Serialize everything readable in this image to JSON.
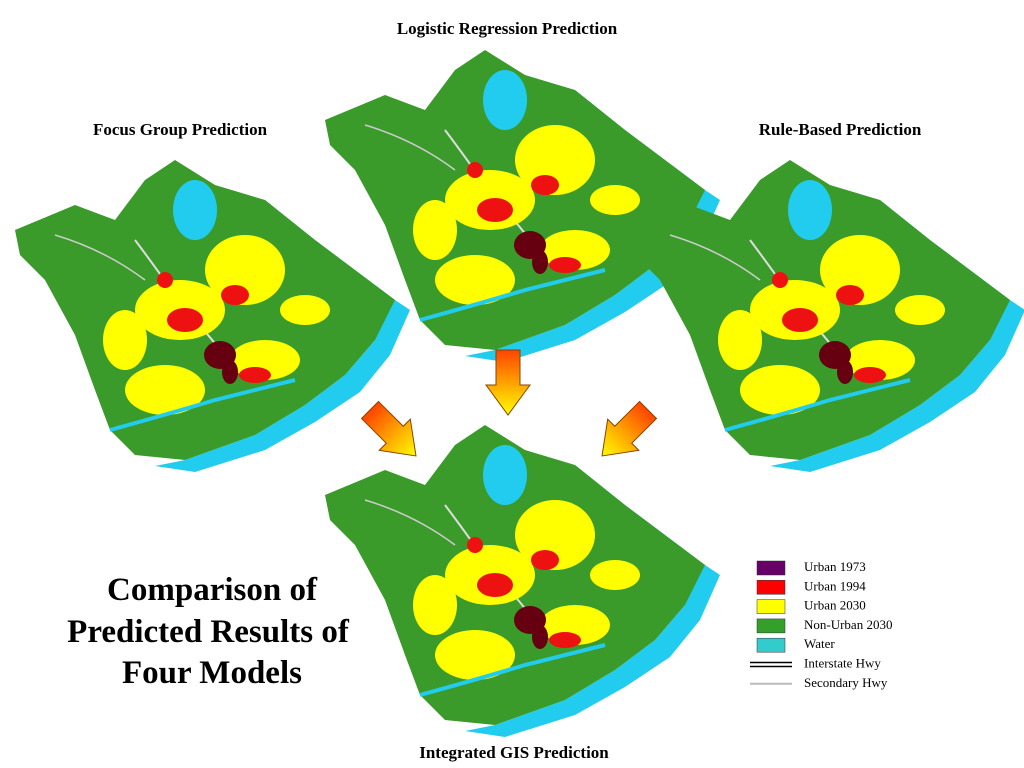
{
  "maps": [
    {
      "label": "Logistic Regression Prediction"
    },
    {
      "label": "Focus Group Prediction"
    },
    {
      "label": "Rule-Based Prediction"
    },
    {
      "label": "Integrated GIS Prediction"
    }
  ],
  "title": {
    "lines": [
      "Comparison of",
      "Predicted Results of",
      "Four Models"
    ]
  },
  "legend": {
    "areas": [
      {
        "label": "Urban 1973",
        "color": "#660066"
      },
      {
        "label": "Urban 1994",
        "color": "#ff0000"
      },
      {
        "label": "Urban 2030",
        "color": "#ffff00"
      },
      {
        "label": "Non-Urban 2030",
        "color": "#33a02c"
      },
      {
        "label": "Water",
        "color": "#33cccc"
      }
    ],
    "lines": [
      {
        "label": "Interstate Hwy",
        "color": "#000000"
      },
      {
        "label": "Secondary Hwy",
        "color": "#bbbbbb"
      }
    ]
  }
}
